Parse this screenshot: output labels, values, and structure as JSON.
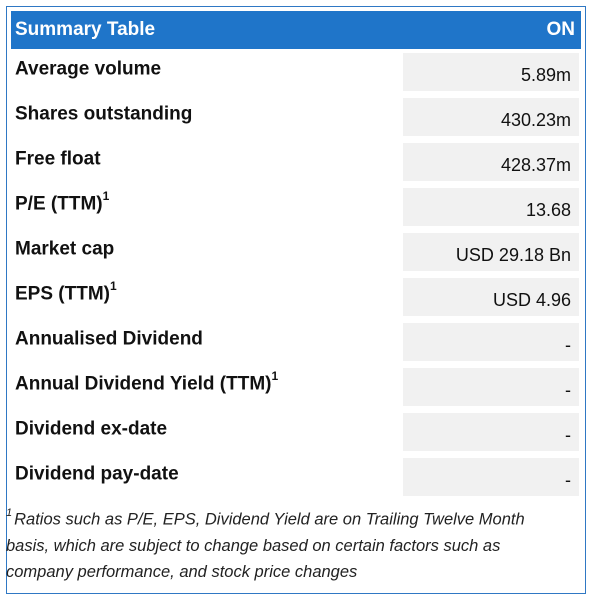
{
  "table": {
    "title": "Summary Table",
    "ticker": "ON",
    "rows": [
      {
        "label": "Average volume",
        "sup": "",
        "value": "5.89m"
      },
      {
        "label": "Shares outstanding",
        "sup": "",
        "value": "430.23m"
      },
      {
        "label": "Free float",
        "sup": "",
        "value": "428.37m"
      },
      {
        "label": "P/E (TTM)",
        "sup": "1",
        "value": "13.68"
      },
      {
        "label": "Market cap",
        "sup": "",
        "value": "USD 29.18 Bn"
      },
      {
        "label": "EPS (TTM)",
        "sup": "1",
        "value": "USD 4.96"
      },
      {
        "label": "Annualised Dividend",
        "sup": "",
        "value": "-"
      },
      {
        "label": "Annual Dividend Yield (TTM)",
        "sup": "1",
        "value": "-"
      },
      {
        "label": "Dividend ex-date",
        "sup": "",
        "value": "-"
      },
      {
        "label": "Dividend pay-date",
        "sup": "",
        "value": "-"
      }
    ]
  },
  "footnote": {
    "marker": "1",
    "text": "Ratios such as P/E, EPS, Dividend Yield are on Trailing Twelve Month basis, which are subject to change based on certain factors such as company performance, and stock price changes"
  },
  "colors": {
    "header_bg": "#1f75c9",
    "border": "#2f78c4",
    "value_bg": "#f1f1f1"
  }
}
